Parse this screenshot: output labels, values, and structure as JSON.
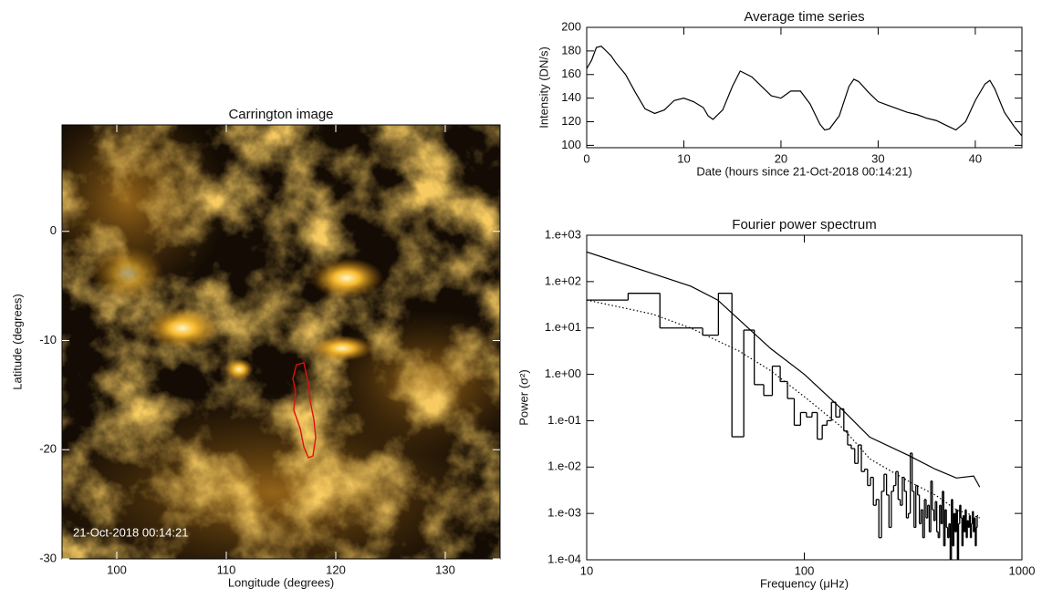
{
  "chart_data": [
    {
      "type": "image",
      "title": "Carrington image",
      "annotation": "21-Oct-2018 00:14:21",
      "xlabel": "Longitude (degrees)",
      "ylabel": "Latitude (degrees)",
      "xlim": [
        95,
        135
      ],
      "ylim": [
        -30,
        9.75
      ],
      "xticks": [
        100,
        110,
        120,
        130
      ],
      "yticks": [
        -30,
        -20,
        -10,
        0
      ]
    },
    {
      "type": "line",
      "title": "Average time series",
      "xlabel": "Date (hours since 21-Oct-2018 00:14:21)",
      "ylabel": "Intensity (DN/s)",
      "xlim": [
        0,
        44.8
      ],
      "ylim": [
        98,
        200
      ],
      "xticks": [
        0,
        10,
        20,
        30,
        40
      ],
      "yticks": [
        100,
        120,
        140,
        160,
        180,
        200
      ],
      "color": "#000000",
      "x": [
        0,
        0.5,
        1,
        1.5,
        2,
        2.5,
        3,
        4,
        5,
        6,
        7,
        8,
        9,
        10,
        11,
        12,
        12.5,
        13,
        14,
        15,
        15.8,
        17,
        18,
        19,
        20,
        21,
        22,
        23,
        24,
        24.5,
        25,
        26,
        27,
        27.5,
        28,
        29,
        30,
        31,
        32,
        33,
        34,
        35,
        36,
        37,
        38,
        39,
        40,
        41,
        41.5,
        42,
        43,
        44,
        44.8
      ],
      "values": [
        165,
        172,
        183,
        184,
        180,
        176,
        170,
        160,
        145,
        131,
        127,
        130,
        138,
        140,
        137,
        132,
        125,
        122,
        130,
        150,
        163,
        158,
        150,
        142,
        140,
        146,
        146,
        135,
        118,
        113,
        114,
        125,
        150,
        156,
        154,
        145,
        137,
        134,
        131,
        128,
        126,
        123,
        121,
        117,
        113,
        120,
        138,
        152,
        155,
        148,
        128,
        116,
        108
      ]
    },
    {
      "type": "line",
      "title": "Fourier power spectrum",
      "xlabel": "Frequency (μHz)",
      "ylabel": "Power (σ²)",
      "xscale": "log",
      "yscale": "log",
      "xlim": [
        10,
        1000
      ],
      "ylim": [
        0.0001,
        1000
      ],
      "xticks": [
        10,
        100,
        1000
      ],
      "yticks": [
        {
          "value": 1000,
          "label": "1.e+03"
        },
        {
          "value": 100,
          "label": "1.e+02"
        },
        {
          "value": 10,
          "label": "1.e+01"
        },
        {
          "value": 1,
          "label": "1.e+00"
        },
        {
          "value": 0.1,
          "label": "1.e-01"
        },
        {
          "value": 0.01,
          "label": "1.e-02"
        },
        {
          "value": 0.001,
          "label": "1.e-03"
        },
        {
          "value": 0.0001,
          "label": "1.e-04"
        }
      ],
      "series": [
        {
          "color": "#000000",
          "style": "solid",
          "x": [
            10,
            20,
            30,
            40,
            47,
            70,
            100,
            150,
            200,
            300,
            400,
            500,
            600,
            640
          ],
          "values": [
            436,
            150,
            80,
            40,
            20,
            3.6,
            1,
            0.17,
            0.044,
            0.018,
            0.009,
            0.0058,
            0.0064,
            0.0037
          ]
        },
        {
          "color": "#000000",
          "style": "dotted",
          "x": [
            10,
            20,
            30,
            50,
            70,
            100,
            150,
            200,
            300,
            400,
            500,
            640
          ],
          "values": [
            40,
            20,
            10,
            3.2,
            1.2,
            0.33,
            0.07,
            0.015,
            0.005,
            0.0025,
            0.0012,
            0.0008
          ]
        },
        {
          "color": "#000000",
          "style": "step",
          "x": [
            12.4,
            18.6,
            24.8,
            31,
            37.2,
            43.4,
            49.6,
            55.8,
            62,
            68.2,
            74.4,
            80.6,
            86.8,
            93,
            99.2,
            105.4,
            111.6,
            117.8,
            124,
            130.2,
            136.4,
            142.6,
            148.8,
            155,
            161.2,
            167.4,
            173.6,
            179.8,
            186,
            192.2,
            198.4,
            204.6,
            210.8,
            217,
            223.2,
            229.4,
            235.6,
            241.8,
            248,
            254.2,
            260.4,
            266.6,
            272.8,
            279,
            285.2,
            291.4,
            297.6,
            303.8,
            310,
            316.2,
            322.4,
            328.6,
            334.8,
            341,
            347.2,
            353.4,
            359.6,
            365.8,
            372,
            378.2,
            384.4,
            390.6,
            396.8,
            403,
            409.2,
            415.4,
            421.6,
            427.8,
            434,
            440.2,
            446.4,
            452.6,
            458.8,
            465,
            471.2,
            477.4,
            483.6,
            489.8,
            496,
            502.2,
            508.4,
            514.6,
            520.8,
            527,
            533.2,
            539.4,
            545.6,
            551.8,
            558,
            564.2,
            570.4,
            576.6,
            582.8,
            589,
            595.2,
            601.4,
            607.6,
            613.8,
            620,
            626.2
          ],
          "values": [
            40,
            56,
            10,
            10,
            7,
            56,
            0.045,
            9,
            0.6,
            0.35,
            1.5,
            0.7,
            0.3,
            0.08,
            0.15,
            0.12,
            0.15,
            0.04,
            0.08,
            0.1,
            0.25,
            0.12,
            0.18,
            0.06,
            0.03,
            0.025,
            0.012,
            0.03,
            0.008,
            0.009,
            0.004,
            0.006,
            0.0015,
            0.002,
            0.0003,
            0.003,
            0.007,
            0.0025,
            0.0005,
            0.003,
            0.004,
            0.008,
            0.002,
            0.0015,
            0.006,
            0.003,
            0.0008,
            0.001,
            0.02,
            0.003,
            0.0005,
            0.004,
            0.0025,
            0.0006,
            0.0012,
            0.0003,
            0.002,
            0.0008,
            0.0015,
            0.0004,
            0.005,
            0.0012,
            0.0007,
            0.0018,
            0.0004,
            0.0003,
            0.0015,
            0.0006,
            0.003,
            0.0002,
            0.0012,
            0.0005,
            0.0003,
            0.0006,
            0.0001,
            0.002,
            0.0002,
            0.001,
            0.0004,
            0.0012,
            0.0001,
            0.0006,
            0.0015,
            0.0008,
            0.0002,
            0.0009,
            0.0004,
            0.0012,
            0.0003,
            0.0007,
            0.0005,
            0.0009,
            0.0003,
            0.0006,
            0.0011,
            0.0004,
            0.0008,
            0.0002,
            0.0005,
            0.0009
          ]
        }
      ]
    }
  ]
}
